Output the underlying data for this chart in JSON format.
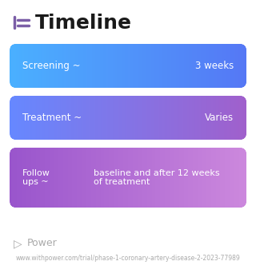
{
  "title": "Timeline",
  "background_color": "#ffffff",
  "title_color": "#1a1a1a",
  "title_fontsize": 18,
  "icon_color": "#7b5ea7",
  "rows": [
    {
      "label": "Screening ~",
      "value": "3 weeks",
      "gradient_left": "#4ab0ff",
      "gradient_right": "#5578f5",
      "text_color": "#ffffff",
      "multiline": false
    },
    {
      "label": "Treatment ~",
      "value": "Varies",
      "gradient_left": "#6688ff",
      "gradient_right": "#a060cc",
      "text_color": "#ffffff",
      "multiline": false
    },
    {
      "label": "Follow\nups ~",
      "value": "baseline and after 12 weeks\nof treatment",
      "gradient_left": "#9955cc",
      "gradient_right": "#cc88dd",
      "text_color": "#ffffff",
      "multiline": true
    }
  ],
  "footer_logo_text": "Power",
  "footer_logo_color": "#aaaaaa",
  "footer_url": "www.withpower.com/trial/phase-1-coronary-artery-disease-2-2023-77989",
  "footer_url_color": "#aaaaaa",
  "footer_fontsize": 5.5
}
